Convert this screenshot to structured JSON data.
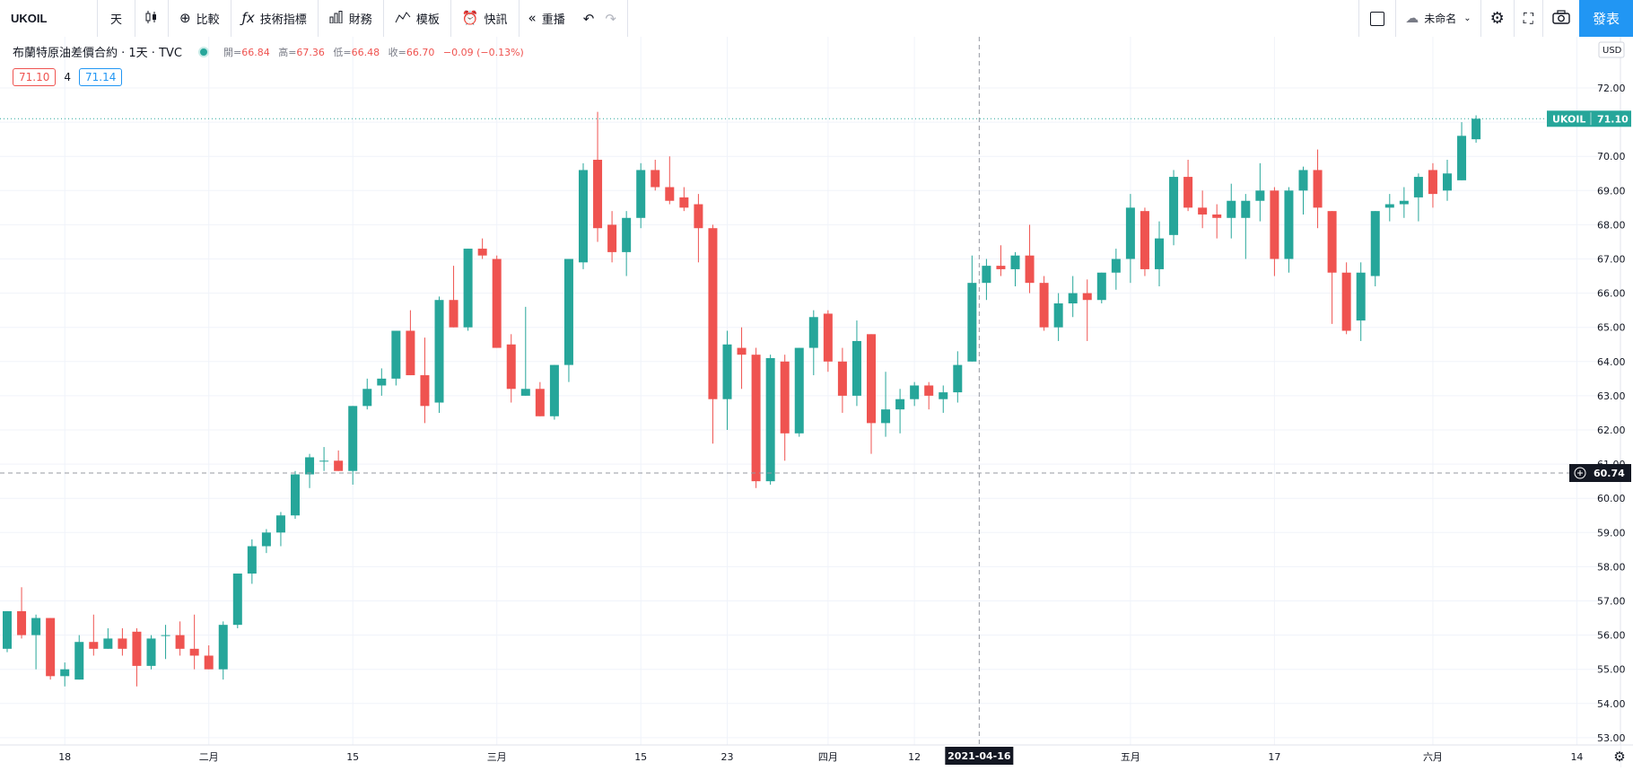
{
  "toolbar": {
    "symbol": "UKOIL",
    "interval": "天",
    "compare": "比較",
    "indicators": "技術指標",
    "financials": "財務",
    "templates": "模板",
    "alerts": "快訊",
    "replay": "重播",
    "layout_name": "未命名",
    "publish": "發表"
  },
  "legend": {
    "title": "布蘭特原油差價合約 · 1天 · TVC",
    "open_label": "開=",
    "open": "66.84",
    "high_label": "高=",
    "high": "67.36",
    "low_label": "低=",
    "low": "66.48",
    "close_label": "收=",
    "close": "66.70",
    "change": "−0.09 (−0.13%)",
    "bid": "71.10",
    "spread": "4",
    "ask": "71.14"
  },
  "colors": {
    "up": "#26a69a",
    "down": "#ef5350",
    "accent": "#2196f3"
  },
  "chart_data": {
    "type": "candlestick",
    "symbol": "UKOIL",
    "currency": "USD",
    "y_ticks": [
      "53.00",
      "54.00",
      "55.00",
      "56.00",
      "57.00",
      "58.00",
      "59.00",
      "60.00",
      "61.00",
      "62.00",
      "63.00",
      "64.00",
      "65.00",
      "66.00",
      "67.00",
      "68.00",
      "69.00",
      "70.00",
      "71.00",
      "72.00"
    ],
    "ylim": [
      52.75,
      73.0
    ],
    "x_ticks": [
      {
        "label": "18",
        "idx": 4
      },
      {
        "label": "二月",
        "idx": 14
      },
      {
        "label": "15",
        "idx": 24
      },
      {
        "label": "三月",
        "idx": 34
      },
      {
        "label": "15",
        "idx": 44
      },
      {
        "label": "23",
        "idx": 50
      },
      {
        "label": "四月",
        "idx": 57
      },
      {
        "label": "12",
        "idx": 63
      },
      {
        "label": "五月",
        "idx": 78
      },
      {
        "label": "17",
        "idx": 88
      },
      {
        "label": "六月",
        "idx": 99
      },
      {
        "label": "14",
        "idx": 109
      }
    ],
    "last_price_label": "UKOIL",
    "last_price": "71.10",
    "crosshair_price": "60.74",
    "crosshair_date": "2021-04-16",
    "crosshair_idx": 67,
    "candles": [
      [
        55.6,
        56.7,
        55.5,
        56.7
      ],
      [
        56.7,
        57.4,
        55.9,
        56.0
      ],
      [
        56.0,
        56.6,
        55.0,
        56.5
      ],
      [
        56.5,
        56.5,
        54.7,
        54.8
      ],
      [
        54.8,
        55.2,
        54.5,
        55.0
      ],
      [
        54.7,
        56.0,
        54.7,
        55.8
      ],
      [
        55.8,
        56.6,
        55.4,
        55.6
      ],
      [
        55.6,
        56.2,
        55.6,
        55.9
      ],
      [
        55.9,
        56.2,
        55.4,
        55.6
      ],
      [
        56.1,
        56.2,
        54.5,
        55.1
      ],
      [
        55.1,
        56.0,
        55.0,
        55.9
      ],
      [
        56.0,
        56.3,
        55.3,
        56.0
      ],
      [
        56.0,
        56.4,
        55.4,
        55.6
      ],
      [
        55.6,
        56.6,
        55.0,
        55.4
      ],
      [
        55.4,
        55.7,
        55.0,
        55.0
      ],
      [
        55.0,
        56.4,
        54.7,
        56.3
      ],
      [
        56.3,
        57.8,
        56.2,
        57.8
      ],
      [
        57.8,
        58.8,
        57.5,
        58.6
      ],
      [
        58.6,
        59.1,
        58.4,
        59.0
      ],
      [
        59.0,
        59.6,
        58.6,
        59.5
      ],
      [
        59.5,
        60.8,
        59.4,
        60.7
      ],
      [
        60.7,
        61.3,
        60.3,
        61.2
      ],
      [
        61.1,
        61.5,
        60.8,
        61.1
      ],
      [
        61.1,
        61.4,
        60.8,
        60.8
      ],
      [
        60.8,
        62.7,
        60.4,
        62.7
      ],
      [
        62.7,
        63.5,
        62.6,
        63.2
      ],
      [
        63.3,
        63.8,
        63.0,
        63.5
      ],
      [
        63.5,
        64.9,
        63.3,
        64.9
      ],
      [
        64.9,
        65.5,
        63.6,
        63.6
      ],
      [
        63.6,
        64.7,
        62.2,
        62.7
      ],
      [
        62.8,
        65.9,
        62.5,
        65.8
      ],
      [
        65.8,
        66.8,
        65.0,
        65.0
      ],
      [
        65.0,
        67.3,
        64.9,
        67.3
      ],
      [
        67.3,
        67.6,
        67.0,
        67.1
      ],
      [
        67.0,
        67.1,
        64.4,
        64.4
      ],
      [
        64.5,
        64.8,
        62.8,
        63.2
      ],
      [
        63.0,
        65.6,
        63.0,
        63.2
      ],
      [
        63.2,
        63.4,
        62.4,
        62.4
      ],
      [
        62.4,
        63.9,
        62.3,
        63.9
      ],
      [
        63.9,
        67.0,
        63.4,
        67.0
      ],
      [
        66.9,
        69.8,
        66.7,
        69.6
      ],
      [
        69.9,
        71.3,
        67.5,
        67.9
      ],
      [
        68.0,
        68.4,
        66.9,
        67.2
      ],
      [
        67.2,
        68.4,
        66.5,
        68.2
      ],
      [
        68.2,
        69.8,
        67.9,
        69.6
      ],
      [
        69.6,
        69.9,
        69.0,
        69.1
      ],
      [
        69.1,
        70.0,
        68.6,
        68.7
      ],
      [
        68.8,
        69.1,
        68.4,
        68.5
      ],
      [
        68.6,
        68.9,
        66.9,
        67.9
      ],
      [
        67.9,
        68.0,
        61.6,
        62.9
      ],
      [
        62.9,
        64.9,
        62.0,
        64.5
      ],
      [
        64.4,
        65.0,
        63.2,
        64.2
      ],
      [
        64.2,
        64.4,
        60.3,
        60.5
      ],
      [
        60.5,
        64.2,
        60.4,
        64.1
      ],
      [
        64.0,
        64.2,
        61.1,
        61.9
      ],
      [
        61.9,
        64.4,
        61.8,
        64.4
      ],
      [
        64.4,
        65.5,
        63.6,
        65.3
      ],
      [
        65.4,
        65.5,
        63.7,
        64.0
      ],
      [
        64.0,
        64.4,
        62.5,
        63.0
      ],
      [
        63.0,
        65.2,
        62.7,
        64.6
      ],
      [
        64.8,
        64.8,
        61.3,
        62.2
      ],
      [
        62.2,
        63.7,
        61.8,
        62.6
      ],
      [
        62.6,
        63.2,
        61.9,
        62.9
      ],
      [
        62.9,
        63.4,
        62.7,
        63.3
      ],
      [
        63.3,
        63.4,
        62.6,
        63.0
      ],
      [
        62.9,
        63.3,
        62.5,
        63.1
      ],
      [
        63.1,
        64.3,
        62.8,
        63.9
      ],
      [
        64.0,
        67.1,
        64.0,
        66.3
      ],
      [
        66.3,
        67.0,
        65.8,
        66.8
      ],
      [
        66.8,
        67.4,
        66.5,
        66.7
      ],
      [
        66.7,
        67.2,
        66.2,
        67.1
      ],
      [
        67.1,
        68.0,
        66.0,
        66.3
      ],
      [
        66.3,
        66.5,
        64.9,
        65.0
      ],
      [
        65.0,
        66.0,
        64.6,
        65.7
      ],
      [
        65.7,
        66.5,
        65.3,
        66.0
      ],
      [
        66.0,
        66.4,
        64.6,
        65.8
      ],
      [
        65.8,
        66.6,
        65.7,
        66.6
      ],
      [
        66.6,
        67.3,
        66.1,
        67.0
      ],
      [
        67.0,
        68.9,
        66.3,
        68.5
      ],
      [
        68.4,
        68.5,
        66.5,
        66.7
      ],
      [
        66.7,
        68.1,
        66.2,
        67.6
      ],
      [
        67.7,
        69.6,
        67.4,
        69.4
      ],
      [
        69.4,
        69.9,
        68.4,
        68.5
      ],
      [
        68.5,
        69.0,
        67.9,
        68.3
      ],
      [
        68.3,
        68.6,
        67.6,
        68.2
      ],
      [
        68.2,
        69.2,
        67.6,
        68.7
      ],
      [
        68.2,
        68.9,
        67.0,
        68.7
      ],
      [
        68.7,
        69.8,
        68.1,
        69.0
      ],
      [
        69.0,
        69.1,
        66.5,
        67.0
      ],
      [
        67.0,
        69.1,
        66.6,
        69.0
      ],
      [
        69.0,
        69.7,
        68.3,
        69.6
      ],
      [
        69.6,
        70.2,
        67.9,
        68.5
      ],
      [
        68.4,
        68.4,
        65.1,
        66.6
      ],
      [
        66.6,
        66.9,
        64.8,
        64.9
      ],
      [
        65.2,
        66.9,
        64.6,
        66.6
      ],
      [
        66.5,
        68.4,
        66.2,
        68.4
      ],
      [
        68.5,
        68.9,
        68.1,
        68.6
      ],
      [
        68.6,
        69.1,
        68.2,
        68.7
      ],
      [
        68.8,
        69.5,
        68.1,
        69.4
      ],
      [
        69.6,
        69.8,
        68.5,
        68.9
      ],
      [
        69.0,
        69.9,
        68.7,
        69.5
      ],
      [
        69.3,
        71.0,
        69.3,
        70.6
      ],
      [
        70.5,
        71.2,
        70.4,
        71.1
      ]
    ]
  }
}
